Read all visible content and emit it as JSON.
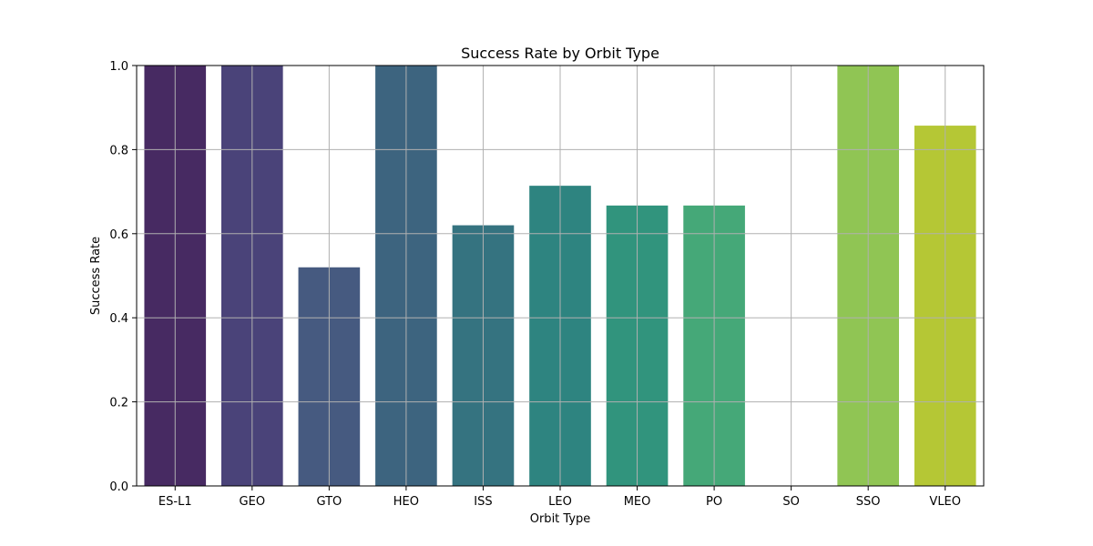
{
  "chart_data": {
    "type": "bar",
    "title": "Success Rate by Orbit Type",
    "xlabel": "Orbit Type",
    "ylabel": "Success Rate",
    "categories": [
      "ES-L1",
      "GEO",
      "GTO",
      "HEO",
      "ISS",
      "LEO",
      "MEO",
      "PO",
      "SO",
      "SSO",
      "VLEO"
    ],
    "values": [
      1.0,
      1.0,
      0.52,
      1.0,
      0.62,
      0.714,
      0.667,
      0.667,
      0.0,
      1.0,
      0.857
    ],
    "colors": [
      "#472a62",
      "#4a4379",
      "#465a80",
      "#3d647f",
      "#357380",
      "#2e8480",
      "#31947d",
      "#45a878",
      "#6bbf68",
      "#90c554",
      "#b5c735"
    ],
    "ylim": [
      0,
      1.0
    ],
    "yticks": [
      0.0,
      0.2,
      0.4,
      0.6,
      0.8,
      1.0
    ],
    "ytick_labels": [
      "0.0",
      "0.2",
      "0.4",
      "0.6",
      "0.8",
      "1.0"
    ],
    "grid": true,
    "legend": "none"
  }
}
